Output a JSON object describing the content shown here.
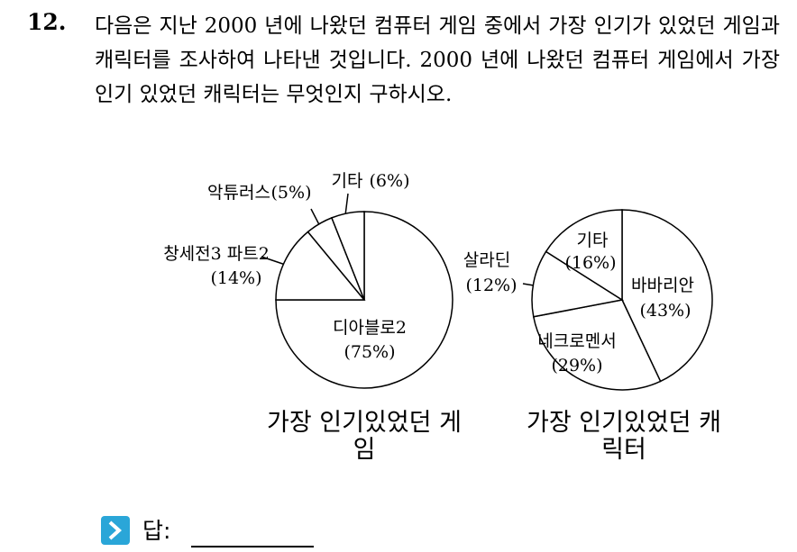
{
  "question": {
    "number": "12.",
    "text": "다음은 지난 2000 년에 나왔던 컴퓨터 게임 중에서 가장 인기가 있었던 게임과 캐릭터를 조사하여 나타낸 것입니다. 2000 년에 나왔던 컴퓨터 게임에서 가장 인기 있었던 캐릭터는 무엇인지 구하시오."
  },
  "chart_data": [
    {
      "type": "pie",
      "title": "가장 인기있었던 게임",
      "categories": [
        "디아블로2",
        "창세전3 파트2",
        "악튜러스",
        "기타"
      ],
      "values": [
        75,
        14,
        5,
        6
      ],
      "value_labels": [
        "(75%)",
        "(14%)",
        "(5%)",
        "(6%)"
      ],
      "color": "#ffffff"
    },
    {
      "type": "pie",
      "title": "가장 인기있었던 캐릭터",
      "categories": [
        "바바리안",
        "네크로멘서",
        "살라딘",
        "기타"
      ],
      "values": [
        43,
        29,
        12,
        16
      ],
      "value_labels": [
        "(43%)",
        "(29%)",
        "(12%)",
        "(16%)"
      ],
      "color": "#ffffff"
    }
  ],
  "answer": {
    "label": "답:"
  }
}
